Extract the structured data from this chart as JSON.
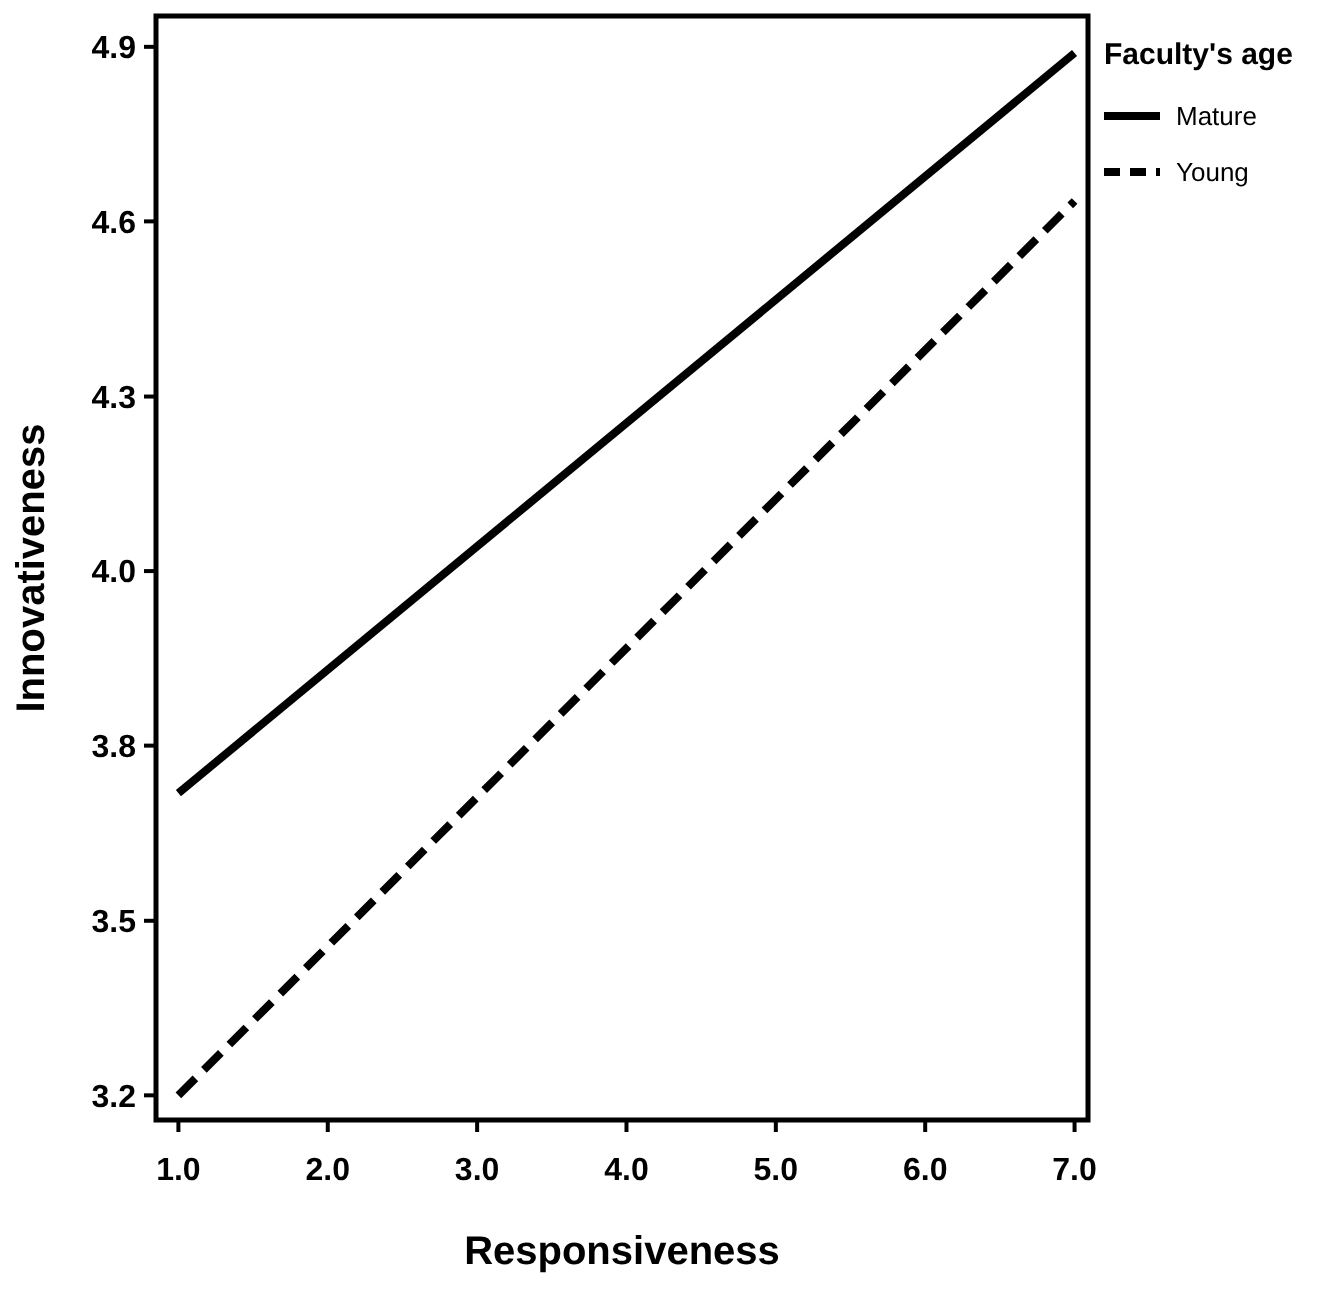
{
  "chart_data": {
    "type": "line",
    "xlabel": "Responsiveness",
    "ylabel": "Innovativeness",
    "legend_title": "Faculty's age",
    "x": [
      1,
      7
    ],
    "series": [
      {
        "name": "Mature",
        "color": "#000000",
        "values": [
          3.69,
          4.89
        ],
        "line_style": "solid"
      },
      {
        "name": "Young",
        "color": "#000000",
        "values": [
          3.2,
          4.65
        ],
        "line_style": "dashed"
      }
    ],
    "xlim": [
      0.85,
      7.09
    ],
    "ylim": [
      3.16,
      4.95
    ],
    "xticks": [
      {
        "value": 1,
        "label": "1.0"
      },
      {
        "value": 2,
        "label": "2.0"
      },
      {
        "value": 3,
        "label": "3.0"
      },
      {
        "value": 4,
        "label": "4.0"
      },
      {
        "value": 5,
        "label": "5.0"
      },
      {
        "value": 6,
        "label": "6.0"
      },
      {
        "value": 7,
        "label": "7.0"
      }
    ],
    "yticks": [
      {
        "value": 3.2,
        "label": "3.2"
      },
      {
        "value": 3.483,
        "label": "3.5"
      },
      {
        "value": 3.767,
        "label": "3.8"
      },
      {
        "value": 4.05,
        "label": "4.0"
      },
      {
        "value": 4.333,
        "label": "4.3"
      },
      {
        "value": 4.617,
        "label": "4.6"
      },
      {
        "value": 4.9,
        "label": "4.9"
      }
    ],
    "grid": false,
    "legend": "top right",
    "marker": "none"
  }
}
